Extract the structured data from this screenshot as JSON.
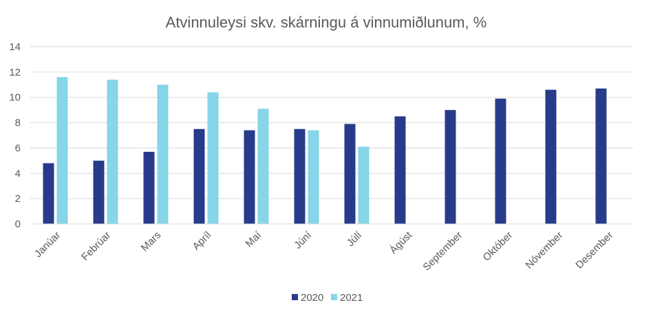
{
  "chart_data": {
    "type": "bar",
    "title": "Atvinnuleysi skv. skárningu á vinnumiðlunum, %",
    "xlabel": "",
    "ylabel": "",
    "categories": [
      "Janúar",
      "Febrúar",
      "Mars",
      "Apríl",
      "Maí",
      "Júní",
      "Júlí",
      "Ágúst",
      "September",
      "Október",
      "Nóvember",
      "Desember"
    ],
    "series": [
      {
        "name": "2020",
        "color": "#283b8a",
        "values": [
          4.8,
          5.0,
          5.7,
          7.5,
          7.4,
          7.5,
          7.9,
          8.5,
          9.0,
          9.9,
          10.6,
          10.7
        ]
      },
      {
        "name": "2021",
        "color": "#86d5e8",
        "values": [
          11.6,
          11.4,
          11.0,
          10.4,
          9.1,
          7.4,
          6.1,
          null,
          null,
          null,
          null,
          null
        ]
      }
    ],
    "ylim": [
      0,
      14
    ],
    "yticks": [
      0,
      2,
      4,
      6,
      8,
      10,
      12,
      14
    ],
    "grid": true,
    "legend": "bottom-center"
  }
}
